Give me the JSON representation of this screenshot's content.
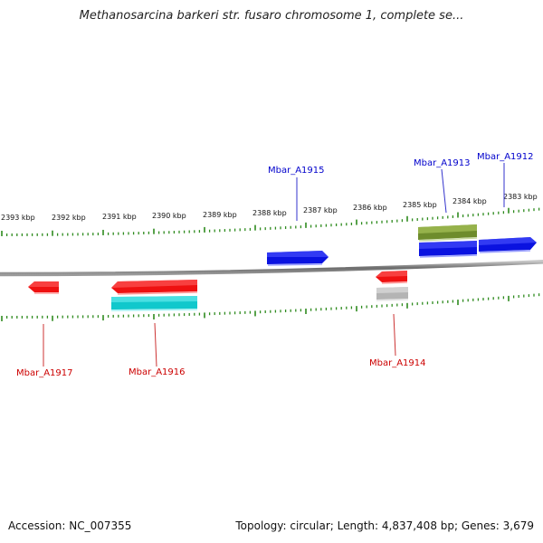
{
  "title": "Methanosarcina barkeri str. fusaro chromosome 1, complete se...",
  "footer": {
    "accession": "Accession: NC_007355",
    "summary": "Topology: circular; Length: 4,837,408 bp; Genes: 3,679"
  },
  "colors": {
    "backbone": "#808080",
    "tick": "#2e8b1e",
    "forward_label": "#0000cc",
    "reverse_label": "#cc0000",
    "blue_gene": "#0a12e0",
    "red_gene": "#ee1111",
    "cyan_gene": "#10c8cc",
    "olive_gene": "#6e8c2c",
    "gray_gene": "#b4b4b4"
  },
  "kbp_labels": [
    "2393 kbp",
    "2392 kbp",
    "2391 kbp",
    "2390 kbp",
    "2389 kbp",
    "2388 kbp",
    "2387 kbp",
    "2386 kbp",
    "2385 kbp",
    "2384 kbp",
    "2383 kbp"
  ],
  "gene_labels": [
    {
      "id": "Mbar_A1915",
      "strand": "forward"
    },
    {
      "id": "Mbar_A1913",
      "strand": "forward"
    },
    {
      "id": "Mbar_A1912",
      "strand": "forward"
    },
    {
      "id": "Mbar_A1917",
      "strand": "reverse"
    },
    {
      "id": "Mbar_A1916",
      "strand": "reverse"
    },
    {
      "id": "Mbar_A1914",
      "strand": "reverse"
    }
  ]
}
